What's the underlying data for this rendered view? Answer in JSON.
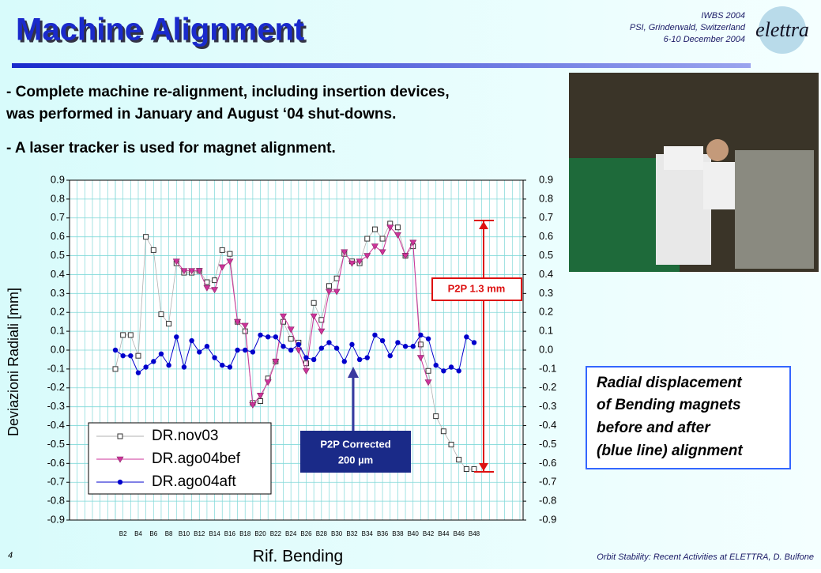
{
  "header": {
    "title": "Machine Alignment",
    "event": [
      "IWBS 2004",
      "PSI, Grinderwald, Switzerland",
      "6-10 December 2004"
    ],
    "logo": "elettra"
  },
  "bullets": [
    "- Complete machine re-alignment, including insertion devices,",
    "was performed in January and August ‘04 shut-downs.",
    "- A laser tracker is used for magnet alignment."
  ],
  "note": [
    "Radial displacement",
    "of Bending magnets",
    "before and after",
    "(blue line) alignment"
  ],
  "footer": {
    "page": "4",
    "credit": "Orbit Stability: Recent Activities at ELETTRA, D. Bulfone"
  },
  "chart_data": {
    "type": "line",
    "xlabel": "Rif. Bending",
    "ylabel": "Deviazioni Radiali [mm]",
    "categories": [
      null,
      "B2",
      null,
      "B4",
      null,
      "B6",
      null,
      "B8",
      null,
      "B10",
      null,
      "B12",
      null,
      "B14",
      null,
      "B16",
      null,
      "B18",
      null,
      "B20",
      null,
      "B22",
      null,
      "B24",
      null,
      "B26",
      null,
      "B28",
      null,
      "B30",
      null,
      "B32",
      null,
      "B34",
      null,
      "B36",
      null,
      "B38",
      null,
      "B40",
      null,
      "B42",
      null,
      "B44",
      null,
      "B46",
      null,
      "B48"
    ],
    "series": [
      {
        "name": "DR.nov03",
        "color": "#b0b0b0",
        "marker": "square",
        "values": [
          -0.1,
          0.08,
          0.08,
          -0.03,
          0.6,
          0.53,
          0.19,
          0.14,
          0.46,
          0.41,
          0.41,
          0.42,
          0.36,
          0.37,
          0.53,
          0.51,
          0.15,
          0.1,
          -0.28,
          -0.27,
          -0.15,
          -0.06,
          0.15,
          0.06,
          0.04,
          -0.07,
          0.25,
          0.16,
          0.34,
          0.38,
          0.51,
          0.47,
          0.46,
          0.59,
          0.64,
          0.59,
          0.67,
          0.65,
          0.5,
          0.55,
          0.03,
          -0.11,
          -0.35,
          -0.43,
          -0.5,
          -0.58,
          -0.63,
          -0.63
        ]
      },
      {
        "name": "DR.ago04bef",
        "color": "#cc3399",
        "marker": "triangle",
        "values": [
          null,
          null,
          null,
          null,
          null,
          null,
          null,
          null,
          0.47,
          0.42,
          0.42,
          0.42,
          0.33,
          0.32,
          0.44,
          0.47,
          0.15,
          0.13,
          -0.29,
          -0.24,
          -0.17,
          -0.06,
          0.18,
          0.11,
          0.0,
          -0.11,
          0.18,
          0.1,
          0.31,
          0.31,
          0.52,
          0.46,
          0.47,
          0.5,
          0.55,
          0.52,
          0.65,
          0.61,
          0.5,
          0.57,
          -0.04,
          -0.17,
          null,
          null,
          null,
          null,
          null,
          null
        ]
      },
      {
        "name": "DR.ago04aft",
        "color": "#0000cc",
        "marker": "circle",
        "values": [
          0.0,
          -0.03,
          -0.03,
          -0.12,
          -0.09,
          -0.06,
          -0.02,
          -0.08,
          0.07,
          -0.09,
          0.05,
          -0.01,
          0.02,
          -0.04,
          -0.08,
          -0.09,
          0.0,
          0.0,
          -0.01,
          0.08,
          0.07,
          0.07,
          0.02,
          0.0,
          0.03,
          -0.04,
          -0.05,
          0.01,
          0.04,
          0.01,
          -0.06,
          0.03,
          -0.05,
          -0.04,
          0.08,
          0.05,
          -0.03,
          0.04,
          0.02,
          0.02,
          0.08,
          0.06,
          -0.08,
          -0.11,
          -0.09,
          -0.11,
          0.07,
          0.04
        ]
      }
    ],
    "ylim": [
      -0.9,
      0.9
    ],
    "yticks": [
      -0.9,
      -0.8,
      -0.7,
      -0.6,
      -0.5,
      -0.4,
      -0.3,
      -0.2,
      -0.1,
      {
        "value": 0,
        "label": "0.0"
      },
      0.1,
      0.2,
      0.3,
      0.4,
      0.5,
      0.6,
      0.7,
      0.8,
      0.9
    ],
    "y2lim": [
      -0.9,
      0.9
    ],
    "y2ticks": [
      -0.9,
      -0.8,
      -0.7,
      -0.6,
      -0.5,
      -0.4,
      -0.3,
      -0.2,
      -0.1,
      {
        "value": 0,
        "label": "0.0"
      },
      0.1,
      0.2,
      0.3,
      0.4,
      0.5,
      0.6,
      0.7,
      0.8,
      0.9
    ],
    "grid": true,
    "legend": "lower left",
    "annotations": [
      {
        "text": [
          "P2P 1.3 mm"
        ],
        "color": "#dd1111"
      },
      {
        "text": [
          "P2P Corrected",
          "200 µm"
        ],
        "color": "#1a2a88"
      }
    ]
  }
}
